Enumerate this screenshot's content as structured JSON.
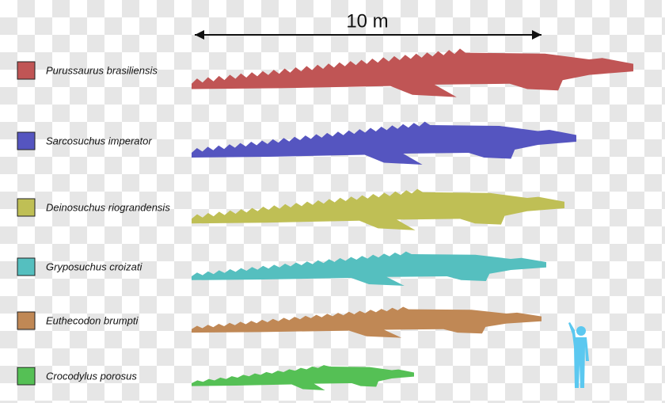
{
  "scale_bar": {
    "label": "10 m"
  },
  "species": [
    {
      "name": "Purussaurus brasiliensis",
      "color": "#c05555"
    },
    {
      "name": "Sarcosuchus imperator",
      "color": "#5555c0"
    },
    {
      "name": "Deinosuchus riograndensis",
      "color": "#bfbf55"
    },
    {
      "name": "Gryposuchus croizati",
      "color": "#55bfbf"
    },
    {
      "name": "Euthecodon brumpti",
      "color": "#c08855"
    },
    {
      "name": "Crocodylus porosus",
      "color": "#55c055"
    }
  ]
}
